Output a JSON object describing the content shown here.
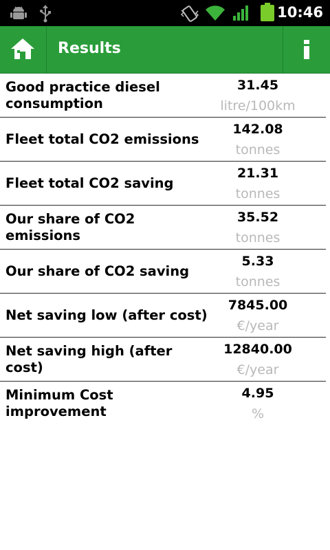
{
  "status_bar": {
    "time": "10:46",
    "icons": [
      "android-debug-icon",
      "usb-icon",
      "vibrate-icon",
      "wifi-icon",
      "signal-icon",
      "battery-icon"
    ]
  },
  "action_bar": {
    "title": "Results",
    "home_icon": "home-icon",
    "info_icon": "info-icon",
    "accent_color": "#2a9d3a"
  },
  "results": [
    {
      "label": "Good practice diesel consumption",
      "value": "31.45",
      "unit": "litre/100km"
    },
    {
      "label": "Fleet total CO2 emissions",
      "value": "142.08",
      "unit": "tonnes"
    },
    {
      "label": "Fleet total CO2 saving",
      "value": "21.31",
      "unit": "tonnes"
    },
    {
      "label": "Our share of CO2 emissions",
      "value": "35.52",
      "unit": "tonnes"
    },
    {
      "label": "Our share of CO2 saving",
      "value": "5.33",
      "unit": "tonnes"
    },
    {
      "label": "Net saving low (after cost)",
      "value": "7845.00",
      "unit": "€/year"
    },
    {
      "label": "Net saving high (after cost)",
      "value": "12840.00",
      "unit": "€/year"
    },
    {
      "label": "Minimum Cost improvement",
      "value": "4.95",
      "unit": "%"
    }
  ]
}
